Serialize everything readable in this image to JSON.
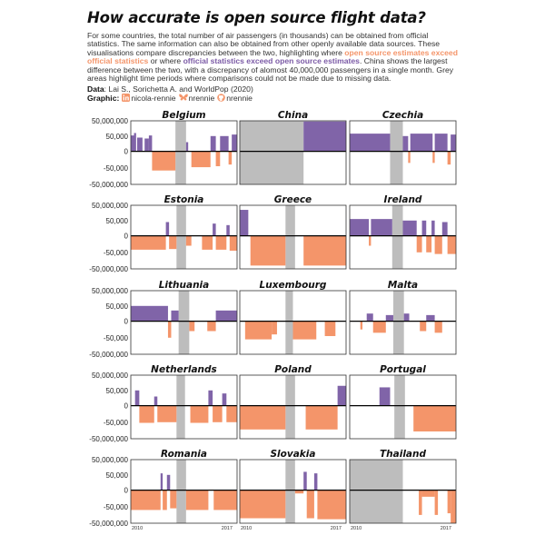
{
  "title": "How accurate is open source flight data?",
  "subtitle": {
    "part1": "For some countries, the total number of air passengers (in thousands) can be obtained from official statistics. The same information can also be obtained from other openly available data sources. These visualisations compare discrepancies between the two, highlighting where ",
    "highlight_orange": "open source estimates exceed official statistics",
    "part2": " or where ",
    "highlight_purple": "official statistics exceed open source estimates",
    "part3": ". China shows the largest difference between the two, with a discrepancy of alomost 40,000,000 passengers in a single month. Grey areas highlight time periods where comparisons could not be made due to missing data."
  },
  "data_source": {
    "label": "Data",
    "text": ": Lai S., Sorichetta A. and WorldPop (2020)"
  },
  "graphic_credit": {
    "label": "Graphic",
    "linkedin": "nicola-rennie",
    "bluesky": "nrennie",
    "github": "nrennie"
  },
  "colors": {
    "official_exceeds": "#8064a8",
    "open_source_exceeds": "#f4956a",
    "missing": "#bdbdbd",
    "zero_line": "#000000",
    "panel_border": "#333333"
  },
  "icons": [
    "linkedin-icon",
    "butterfly-icon",
    "github-icon"
  ],
  "chart_data": {
    "type": "bar",
    "facet_layout": {
      "rows": 5,
      "cols": 3
    },
    "x_axis": {
      "start_year": 2010,
      "end_year": 2017,
      "tick_labels": [
        "2010",
        "2017"
      ]
    },
    "y_axis": {
      "ticks": [
        50000000,
        50000,
        0,
        -50000,
        -50000000
      ],
      "tick_labels": [
        "50,000,000",
        "50,000",
        "0",
        "-50,000",
        "-50,000,000"
      ]
    },
    "panels": [
      {
        "country": "Belgium",
        "missing": [
          [
            0.42,
            0.52
          ]
        ],
        "segments": [
          [
            0.0,
            0.03,
            0.52
          ],
          [
            0.03,
            0.05,
            0.6
          ],
          [
            0.05,
            0.06,
            0.0
          ],
          [
            0.06,
            0.11,
            0.45
          ],
          [
            0.11,
            0.13,
            0.0
          ],
          [
            0.13,
            0.17,
            0.42
          ],
          [
            0.17,
            0.2,
            0.52
          ],
          [
            0.2,
            0.42,
            -0.58
          ],
          [
            0.52,
            0.54,
            0.3
          ],
          [
            0.54,
            0.57,
            0.0
          ],
          [
            0.57,
            0.75,
            -0.48
          ],
          [
            0.75,
            0.8,
            0.5
          ],
          [
            0.8,
            0.84,
            -0.45
          ],
          [
            0.84,
            0.92,
            0.5
          ],
          [
            0.92,
            0.95,
            -0.4
          ],
          [
            0.95,
            1.0,
            0.55
          ]
        ]
      },
      {
        "country": "China",
        "missing": [
          [
            0.0,
            0.6
          ]
        ],
        "segments": [
          [
            0.6,
            1.0,
            0.98
          ]
        ]
      },
      {
        "country": "Czechia",
        "missing": [
          [
            0.38,
            0.5
          ]
        ],
        "segments": [
          [
            0.0,
            0.38,
            0.58
          ],
          [
            0.5,
            0.55,
            0.5
          ],
          [
            0.55,
            0.57,
            -0.35
          ],
          [
            0.57,
            0.78,
            0.58
          ],
          [
            0.78,
            0.8,
            -0.35
          ],
          [
            0.8,
            0.92,
            0.58
          ],
          [
            0.92,
            0.95,
            -0.4
          ],
          [
            0.95,
            1.0,
            0.55
          ]
        ]
      },
      {
        "country": "Estonia",
        "missing": [
          [
            0.43,
            0.52
          ]
        ],
        "segments": [
          [
            0.0,
            0.33,
            -0.42
          ],
          [
            0.33,
            0.36,
            0.45
          ],
          [
            0.36,
            0.43,
            -0.4
          ],
          [
            0.52,
            0.57,
            -0.3
          ],
          [
            0.57,
            0.67,
            0.0
          ],
          [
            0.67,
            0.77,
            -0.42
          ],
          [
            0.77,
            0.8,
            0.4
          ],
          [
            0.8,
            0.9,
            -0.42
          ],
          [
            0.9,
            0.93,
            0.35
          ],
          [
            0.93,
            1.0,
            -0.45
          ]
        ]
      },
      {
        "country": "Greece",
        "missing": [
          [
            0.43,
            0.52
          ]
        ],
        "segments": [
          [
            0.0,
            0.08,
            0.85
          ],
          [
            0.08,
            0.1,
            0.0
          ],
          [
            0.1,
            0.43,
            -0.9
          ],
          [
            0.52,
            0.6,
            0.0
          ],
          [
            0.6,
            1.0,
            -0.9
          ]
        ]
      },
      {
        "country": "Ireland",
        "missing": [
          [
            0.4,
            0.5
          ]
        ],
        "segments": [
          [
            0.0,
            0.18,
            0.55
          ],
          [
            0.18,
            0.2,
            -0.3
          ],
          [
            0.2,
            0.4,
            0.55
          ],
          [
            0.5,
            0.63,
            0.5
          ],
          [
            0.63,
            0.68,
            -0.5
          ],
          [
            0.68,
            0.72,
            0.5
          ],
          [
            0.72,
            0.77,
            -0.5
          ],
          [
            0.77,
            0.8,
            0.5
          ],
          [
            0.8,
            0.87,
            -0.55
          ],
          [
            0.87,
            0.92,
            0.45
          ],
          [
            0.92,
            1.0,
            -0.55
          ]
        ]
      },
      {
        "country": "Lithuania",
        "missing": [
          [
            0.45,
            0.55
          ]
        ],
        "segments": [
          [
            0.0,
            0.35,
            0.5
          ],
          [
            0.35,
            0.38,
            -0.5
          ],
          [
            0.38,
            0.45,
            0.35
          ],
          [
            0.55,
            0.6,
            -0.3
          ],
          [
            0.6,
            0.72,
            0.0
          ],
          [
            0.72,
            0.8,
            -0.3
          ],
          [
            0.8,
            1.0,
            0.35
          ]
        ]
      },
      {
        "country": "Luxembourg",
        "missing": [
          [
            0.43,
            0.5
          ]
        ],
        "segments": [
          [
            0.0,
            0.05,
            0.0
          ],
          [
            0.05,
            0.3,
            -0.55
          ],
          [
            0.3,
            0.35,
            -0.4
          ],
          [
            0.35,
            0.43,
            0.0
          ],
          [
            0.5,
            0.72,
            -0.55
          ],
          [
            0.72,
            0.8,
            0.0
          ],
          [
            0.8,
            0.9,
            -0.45
          ],
          [
            0.9,
            1.0,
            0.0
          ]
        ]
      },
      {
        "country": "Malta",
        "missing": [
          [
            0.41,
            0.51
          ]
        ],
        "segments": [
          [
            0.0,
            0.1,
            0.0
          ],
          [
            0.1,
            0.12,
            -0.25
          ],
          [
            0.12,
            0.16,
            0.0
          ],
          [
            0.16,
            0.22,
            0.25
          ],
          [
            0.22,
            0.34,
            -0.35
          ],
          [
            0.34,
            0.41,
            0.2
          ],
          [
            0.51,
            0.56,
            0.25
          ],
          [
            0.56,
            0.66,
            0.0
          ],
          [
            0.66,
            0.72,
            -0.3
          ],
          [
            0.72,
            0.8,
            0.2
          ],
          [
            0.8,
            0.87,
            -0.35
          ],
          [
            0.87,
            1.0,
            0.0
          ]
        ]
      },
      {
        "country": "Netherlands",
        "missing": [
          [
            0.43,
            0.51
          ]
        ],
        "segments": [
          [
            0.0,
            0.04,
            0.0
          ],
          [
            0.04,
            0.08,
            0.5
          ],
          [
            0.08,
            0.22,
            -0.52
          ],
          [
            0.22,
            0.25,
            0.3
          ],
          [
            0.25,
            0.43,
            -0.5
          ],
          [
            0.51,
            0.56,
            0.0
          ],
          [
            0.56,
            0.73,
            -0.52
          ],
          [
            0.73,
            0.77,
            0.5
          ],
          [
            0.77,
            0.86,
            -0.5
          ],
          [
            0.86,
            0.9,
            0.4
          ],
          [
            0.9,
            1.0,
            -0.5
          ]
        ]
      },
      {
        "country": "Poland",
        "missing": [
          [
            0.43,
            0.52
          ]
        ],
        "segments": [
          [
            0.0,
            0.43,
            -0.72
          ],
          [
            0.52,
            0.62,
            0.0
          ],
          [
            0.62,
            0.92,
            -0.72
          ],
          [
            0.92,
            1.0,
            0.65
          ]
        ]
      },
      {
        "country": "Portugal",
        "missing": [
          [
            0.42,
            0.52
          ]
        ],
        "segments": [
          [
            0.0,
            0.28,
            0.0
          ],
          [
            0.28,
            0.38,
            0.6
          ],
          [
            0.38,
            0.42,
            0.0
          ],
          [
            0.52,
            0.6,
            0.0
          ],
          [
            0.6,
            1.0,
            -0.78
          ]
        ]
      },
      {
        "country": "Romania",
        "missing": [
          [
            0.43,
            0.52
          ]
        ],
        "segments": [
          [
            0.0,
            0.28,
            -0.6
          ],
          [
            0.28,
            0.3,
            0.55
          ],
          [
            0.3,
            0.34,
            -0.6
          ],
          [
            0.34,
            0.37,
            0.5
          ],
          [
            0.37,
            0.43,
            -0.55
          ],
          [
            0.52,
            0.73,
            -0.6
          ],
          [
            0.73,
            0.78,
            0.0
          ],
          [
            0.78,
            1.0,
            -0.6
          ]
        ]
      },
      {
        "country": "Slovakia",
        "missing": [
          [
            0.43,
            0.52
          ]
        ],
        "segments": [
          [
            0.0,
            0.43,
            -0.85
          ],
          [
            0.52,
            0.6,
            -0.1
          ],
          [
            0.6,
            0.63,
            0.6
          ],
          [
            0.63,
            0.7,
            -0.85
          ],
          [
            0.7,
            0.73,
            0.55
          ],
          [
            0.73,
            1.0,
            -0.88
          ]
        ]
      },
      {
        "country": "Thailand",
        "missing": [
          [
            0.0,
            0.5
          ]
        ],
        "segments": [
          [
            0.5,
            0.65,
            0.0
          ],
          [
            0.65,
            0.68,
            -0.75
          ],
          [
            0.68,
            0.8,
            -0.2
          ],
          [
            0.8,
            0.83,
            -0.75
          ],
          [
            0.83,
            0.92,
            0.0
          ],
          [
            0.92,
            0.95,
            -0.7
          ],
          [
            0.95,
            1.0,
            -1.0
          ]
        ]
      }
    ]
  }
}
